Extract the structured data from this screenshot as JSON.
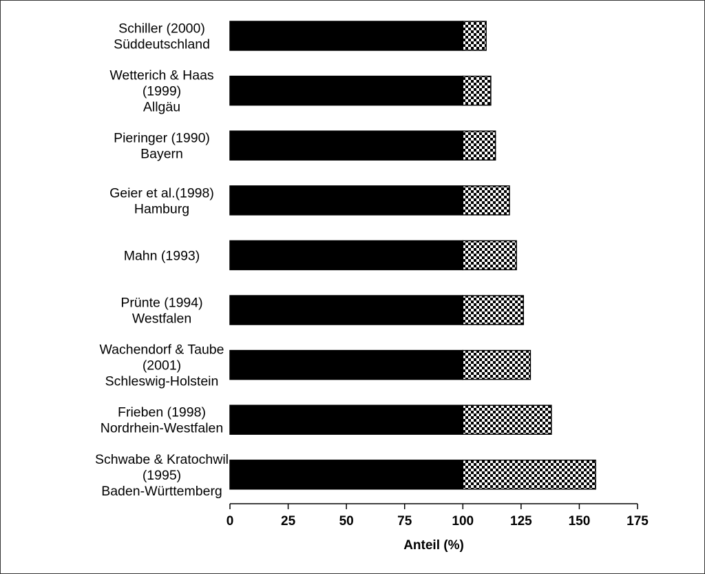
{
  "chart_data": {
    "type": "bar",
    "orientation": "horizontal",
    "stacked": true,
    "xlabel": "Anteil (%)",
    "xlim": [
      0,
      175
    ],
    "xticks": [
      0,
      25,
      50,
      75,
      100,
      125,
      150,
      175
    ],
    "grid": false,
    "categories": [
      [
        "Schiller (2000)",
        "Süddeutschland"
      ],
      [
        "Wetterich & Haas",
        "(1999)",
        "Allgäu"
      ],
      [
        "Pieringer (1990)",
        "Bayern"
      ],
      [
        "Geier et al.(1998)",
        "Hamburg"
      ],
      [
        "Mahn (1993)"
      ],
      [
        "Prünte (1994)",
        "Westfalen"
      ],
      [
        "Wachendorf & Taube",
        "(2001)",
        "Schleswig-Holstein"
      ],
      [
        "Frieben (1998)",
        "Nordrhein-Westfalen"
      ],
      [
        "Schwabe & Kratochwil",
        "(1995)",
        "Baden-Württemberg"
      ]
    ],
    "series": [
      {
        "fill": "solid",
        "color": "#000000",
        "values": [
          100,
          100,
          100,
          100,
          100,
          100,
          100,
          100,
          100
        ]
      },
      {
        "fill": "checkered",
        "color": "#000000",
        "values": [
          10,
          12,
          14,
          20,
          23,
          26,
          29,
          38,
          57
        ]
      }
    ]
  }
}
